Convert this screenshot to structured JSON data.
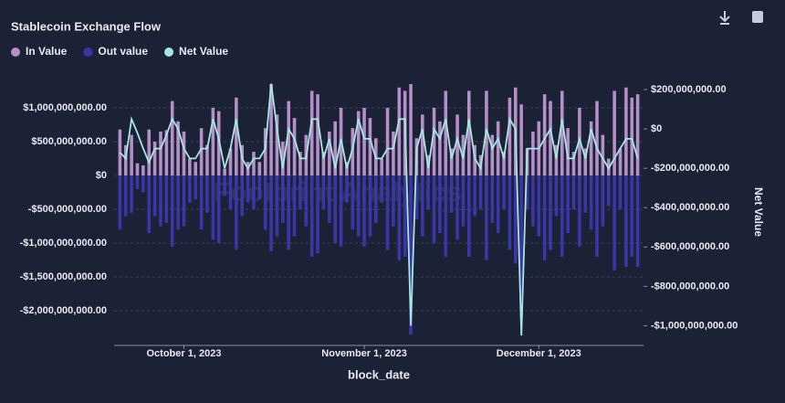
{
  "chart_data": {
    "type": "bar",
    "title": "Stablecoin Exchange Flow",
    "watermark": "Footprint Analytics",
    "x_label": "block_date",
    "y2_label": "Net Value",
    "grid": true,
    "legend": "top-left",
    "x": [
      "2023-09-20",
      "2023-09-21",
      "2023-09-22",
      "2023-09-23",
      "2023-09-24",
      "2023-09-25",
      "2023-09-26",
      "2023-09-27",
      "2023-09-28",
      "2023-09-29",
      "2023-09-30",
      "2023-10-01",
      "2023-10-02",
      "2023-10-03",
      "2023-10-04",
      "2023-10-05",
      "2023-10-06",
      "2023-10-07",
      "2023-10-08",
      "2023-10-09",
      "2023-10-10",
      "2023-10-11",
      "2023-10-12",
      "2023-10-13",
      "2023-10-14",
      "2023-10-15",
      "2023-10-16",
      "2023-10-17",
      "2023-10-18",
      "2023-10-19",
      "2023-10-20",
      "2023-10-21",
      "2023-10-22",
      "2023-10-23",
      "2023-10-24",
      "2023-10-25",
      "2023-10-26",
      "2023-10-27",
      "2023-10-28",
      "2023-10-29",
      "2023-10-30",
      "2023-10-31",
      "2023-11-01",
      "2023-11-02",
      "2023-11-03",
      "2023-11-04",
      "2023-11-05",
      "2023-11-06",
      "2023-11-07",
      "2023-11-08",
      "2023-11-09",
      "2023-11-10",
      "2023-11-11",
      "2023-11-12",
      "2023-11-13",
      "2023-11-14",
      "2023-11-15",
      "2023-11-16",
      "2023-11-17",
      "2023-11-18",
      "2023-11-19",
      "2023-11-20",
      "2023-11-21",
      "2023-11-22",
      "2023-11-23",
      "2023-11-24",
      "2023-11-25",
      "2023-11-26",
      "2023-11-27",
      "2023-11-28",
      "2023-11-29",
      "2023-11-30",
      "2023-12-01",
      "2023-12-02",
      "2023-12-03",
      "2023-12-04",
      "2023-12-05",
      "2023-12-06",
      "2023-12-07",
      "2023-12-08",
      "2023-12-09",
      "2023-12-10",
      "2023-12-11",
      "2023-12-12",
      "2023-12-13",
      "2023-12-14",
      "2023-12-15",
      "2023-12-16",
      "2023-12-17",
      "2023-12-18"
    ],
    "xlim": [
      "2023-09-19",
      "2023-12-19"
    ],
    "xticks": [
      {
        "value": "2023-10-01",
        "label": "October 1, 2023"
      },
      {
        "value": "2023-11-01",
        "label": "November 1, 2023"
      },
      {
        "value": "2023-12-01",
        "label": "December 1, 2023"
      }
    ],
    "ylim": [
      -2510000000,
      1310000000
    ],
    "yticks": [
      {
        "value": -2000000000,
        "label": "-$2,000,000,000.00"
      },
      {
        "value": -1500000000,
        "label": "-$1,500,000,000.00"
      },
      {
        "value": -1000000000,
        "label": "-$1,000,000,000.00"
      },
      {
        "value": -500000000,
        "label": "-$500,000,000.00"
      },
      {
        "value": 0,
        "label": "$0"
      },
      {
        "value": 500000000,
        "label": "$500,000,000.00"
      },
      {
        "value": 1000000000,
        "label": "$1,000,000,000.00"
      }
    ],
    "y2lim": [
      -1100000000,
      214000000
    ],
    "y2ticks": [
      {
        "value": -1000000000,
        "label": "-$1,000,000,000.00"
      },
      {
        "value": -800000000,
        "label": "-$800,000,000.00"
      },
      {
        "value": -600000000,
        "label": "-$600,000,000.00"
      },
      {
        "value": -400000000,
        "label": "-$400,000,000.00"
      },
      {
        "value": -200000000,
        "label": "-$200,000,000.00"
      },
      {
        "value": 0,
        "label": "$0"
      },
      {
        "value": 200000000,
        "label": "$200,000,000.00"
      }
    ],
    "series": [
      {
        "name": "In Value",
        "color": "#b48fc8",
        "values": [
          680000000.0,
          450000000.0,
          600000000.0,
          180000000.0,
          150000000.0,
          680000000.0,
          500000000.0,
          650000000.0,
          670000000.0,
          1100000000.0,
          800000000.0,
          650000000.0,
          250000000.0,
          200000000.0,
          700000000.0,
          450000000.0,
          1000000000.0,
          950000000.0,
          100000000.0,
          400000000.0,
          1150000000.0,
          450000000.0,
          200000000.0,
          350000000.0,
          200000000.0,
          700000000.0,
          1350000000.0,
          900000000.0,
          500000000.0,
          1100000000.0,
          850000000.0,
          350000000.0,
          600000000.0,
          1250000000.0,
          1200000000.0,
          350000000.0,
          650000000.0,
          800000000.0,
          1000000000.0,
          200000000.0,
          700000000.0,
          950000000.0,
          1000000000.0,
          850000000.0,
          550000000.0,
          250000000.0,
          1000000000.0,
          650000000.0,
          1300000000.0,
          1250000000.0,
          1350000000.0,
          550000000.0,
          900000000.0,
          300000000.0,
          1000000000.0,
          800000000.0,
          1250000000.0,
          400000000.0,
          900000000.0,
          600000000.0,
          1250000000.0,
          450000000.0,
          300000000.0,
          1250000000.0,
          600000000.0,
          800000000.0,
          350000000.0,
          1150000000.0,
          1300000000.0,
          1050000000.0,
          400000000.0,
          650000000.0,
          800000000.0,
          1200000000.0,
          1100000000.0,
          450000000.0,
          1250000000.0,
          700000000.0,
          350000000.0,
          1000000000.0,
          400000000.0,
          800000000.0,
          1100000000.0,
          600000000.0,
          250000000.0,
          1250000000.0,
          400000000.0,
          1300000000.0,
          1150000000.0,
          1200000000.0
        ]
      },
      {
        "name": "Out value",
        "color": "#3b36a8",
        "values": [
          -800000000.0,
          -600000000.0,
          -550000000.0,
          -200000000.0,
          -250000000.0,
          -850000000.0,
          -600000000.0,
          -750000000.0,
          -700000000.0,
          -1050000000.0,
          -800000000.0,
          -750000000.0,
          -400000000.0,
          -350000000.0,
          -800000000.0,
          -550000000.0,
          -950000000.0,
          -1000000000.0,
          -300000000.0,
          -500000000.0,
          -1100000000.0,
          -600000000.0,
          -400000000.0,
          -500000000.0,
          -350000000.0,
          -800000000.0,
          -1120000000.0,
          -900000000.0,
          -700000000.0,
          -1100000000.0,
          -900000000.0,
          -500000000.0,
          -750000000.0,
          -1200000000.0,
          -1150000000.0,
          -500000000.0,
          -700000000.0,
          -1000000000.0,
          -1050000000.0,
          -400000000.0,
          -800000000.0,
          -900000000.0,
          -1050000000.0,
          -900000000.0,
          -700000000.0,
          -400000000.0,
          -1100000000.0,
          -750000000.0,
          -1250000000.0,
          -1200000000.0,
          -2350000000.0,
          -650000000.0,
          -900000000.0,
          -500000000.0,
          -1000000000.0,
          -850000000.0,
          -1200000000.0,
          -550000000.0,
          -950000000.0,
          -750000000.0,
          -1200000000.0,
          -600000000.0,
          -500000000.0,
          -1250000000.0,
          -700000000.0,
          -850000000.0,
          -500000000.0,
          -1100000000.0,
          -1300000000.0,
          -2100000000.0,
          -500000000.0,
          -750000000.0,
          -900000000.0,
          -1250000000.0,
          -1100000000.0,
          -600000000.0,
          -1200000000.0,
          -850000000.0,
          -500000000.0,
          -1050000000.0,
          -550000000.0,
          -800000000.0,
          -1200000000.0,
          -750000000.0,
          -450000000.0,
          -1400000000.0,
          -500000000.0,
          -1350000000.0,
          -1200000000.0,
          -1350000000.0
        ]
      },
      {
        "name": "Net Value",
        "color": "#a8e6e0",
        "axis": "y2",
        "values": [
          -120000000.0,
          -150000000.0,
          50000000.0,
          -20000000.0,
          -100000000.0,
          -170000000.0,
          -100000000.0,
          -100000000.0,
          -30000000.0,
          50000000.0,
          0,
          -100000000.0,
          -150000000.0,
          -150000000.0,
          -100000000.0,
          -100000000.0,
          50000000.0,
          -50000000.0,
          -200000000.0,
          -100000000.0,
          50000000.0,
          -150000000.0,
          -200000000.0,
          -150000000.0,
          -150000000.0,
          -100000000.0,
          230000000.0,
          0,
          -200000000.0,
          0,
          -50000000.0,
          -150000000.0,
          -150000000.0,
          50000000.0,
          50000000.0,
          -150000000.0,
          -50000000.0,
          -200000000.0,
          -50000000.0,
          -200000000.0,
          -100000000.0,
          50000000.0,
          -50000000.0,
          -50000000.0,
          -150000000.0,
          -150000000.0,
          -100000000.0,
          -100000000.0,
          50000000.0,
          50000000.0,
          -1000000000.0,
          -100000000.0,
          0,
          -200000000.0,
          0,
          -50000000.0,
          50000000.0,
          -150000000.0,
          -50000000.0,
          -150000000.0,
          50000000.0,
          -150000000.0,
          -200000000.0,
          0,
          -100000000.0,
          -50000000.0,
          -150000000.0,
          50000000.0,
          0,
          -1050000000.0,
          -100000000.0,
          -100000000.0,
          -100000000.0,
          -50000000.0,
          0,
          -150000000.0,
          50000000.0,
          -150000000.0,
          -150000000.0,
          -50000000.0,
          -150000000.0,
          0,
          -100000000.0,
          -150000000.0,
          -200000000.0,
          -150000000.0,
          -100000000.0,
          -50000000.0,
          -50000000.0,
          -150000000.0
        ]
      }
    ]
  }
}
